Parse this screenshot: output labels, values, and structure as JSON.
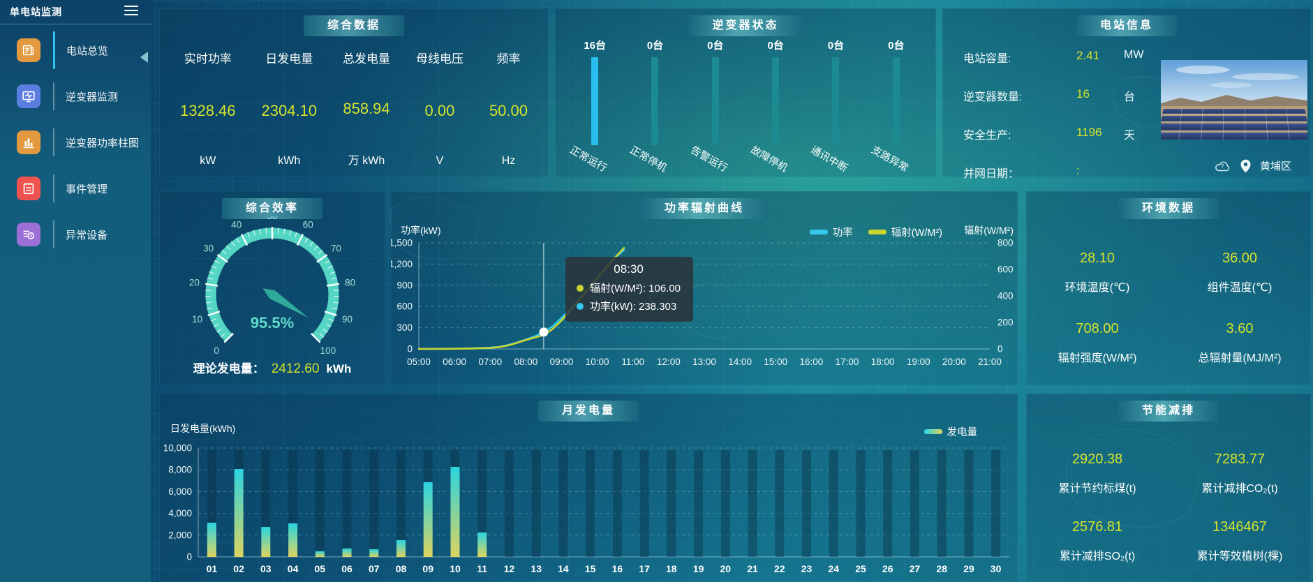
{
  "app": {
    "title": "单电站监测",
    "location": "黄埔区"
  },
  "sidebar": {
    "items": [
      {
        "label": "电站总览",
        "icon": "plant-overview-icon",
        "icon_bg": "#e2993f",
        "active": true
      },
      {
        "label": "逆变器监测",
        "icon": "inverter-monitor-icon",
        "icon_bg": "#5b7de0",
        "active": false
      },
      {
        "label": "逆变器功率柱图",
        "icon": "inverter-power-chart-icon",
        "icon_bg": "#e2993f",
        "active": false
      },
      {
        "label": "事件管理",
        "icon": "event-management-icon",
        "icon_bg": "#ef5350",
        "active": false
      },
      {
        "label": "异常设备",
        "icon": "abnormal-device-icon",
        "icon_bg": "#9c6fd6",
        "active": false
      }
    ]
  },
  "panels": {
    "summary": {
      "title": "综合数据",
      "metrics": [
        {
          "label": "实时功率",
          "value": "1328.46",
          "unit": "kW"
        },
        {
          "label": "日发电量",
          "value": "2304.10",
          "unit": "kWh"
        },
        {
          "label": "总发电量",
          "value": "858.94",
          "unit": "万 kWh"
        },
        {
          "label": "母线电压",
          "value": "0.00",
          "unit": "V"
        },
        {
          "label": "频率",
          "value": "50.00",
          "unit": "Hz"
        }
      ]
    },
    "inverter_status": {
      "title": "逆变器状态"
    },
    "station_info": {
      "title": "电站信息",
      "rows": [
        {
          "label": "电站容量:",
          "value": "2.41",
          "unit": "MW"
        },
        {
          "label": "逆变器数量:",
          "value": "16",
          "unit": "台"
        },
        {
          "label": "安全生产:",
          "value": "1196",
          "unit": "天"
        },
        {
          "label": "并网日期：",
          "value": ":",
          "unit": ""
        }
      ],
      "location": "黄埔区"
    },
    "efficiency": {
      "title": "综合效率",
      "theory_label": "理论发电量：",
      "theory_value": "2412.60",
      "theory_unit": "kWh"
    },
    "power_curve": {
      "title": "功率辐射曲线"
    },
    "environment": {
      "title": "环境数据",
      "items": [
        {
          "value": "28.10",
          "label": "环境温度(℃)"
        },
        {
          "value": "36.00",
          "label": "组件温度(℃)"
        },
        {
          "value": "708.00",
          "label": "辐射强度(W/M²)"
        },
        {
          "value": "3.60",
          "label": "总辐射量(MJ/M²)"
        }
      ]
    },
    "monthly": {
      "title": "月发电量"
    },
    "energy_saving": {
      "title": "节能减排",
      "items": [
        {
          "value": "2920.38",
          "label": "累计节约标煤(t)"
        },
        {
          "value": "7283.77",
          "label": "累计减排CO₂(t)"
        },
        {
          "value": "2576.81",
          "label": "累计减排SO₂(t)"
        },
        {
          "value": "1346467",
          "label": "累计等效植树(棵)"
        }
      ]
    }
  },
  "chart_data": [
    {
      "name": "inverter_status",
      "type": "bar",
      "categories": [
        "正常运行",
        "正常停机",
        "告警运行",
        "故障停机",
        "通讯中断",
        "支路异常"
      ],
      "values": [
        16,
        0,
        0,
        0,
        0,
        0
      ],
      "count_suffix": "台",
      "colors": [
        "#29bdf0",
        "#1b8a91",
        "#1b8a91",
        "#1b8a91",
        "#1b8a91",
        "#1b8a91"
      ]
    },
    {
      "name": "efficiency_gauge",
      "type": "gauge",
      "value": 95.5,
      "display": "95.5%",
      "min": 0,
      "max": 100,
      "tick_step": 10,
      "arc_color": "#55d6c4",
      "needle_color": "#2fa99a",
      "label_color": "#a5ded6",
      "value_color": "#62d9c8"
    },
    {
      "name": "power_radiation_curve",
      "type": "line",
      "title": "功率辐射曲线",
      "left_axis": {
        "label": "功率(kW)",
        "max": 1500,
        "ticks": [
          {
            "v": 1500,
            "t": "1,500"
          },
          {
            "v": 1200,
            "t": "1,200"
          },
          {
            "v": 900,
            "t": "900"
          },
          {
            "v": 600,
            "t": "600"
          },
          {
            "v": 300,
            "t": "300"
          },
          {
            "v": 0,
            "t": "0"
          }
        ]
      },
      "right_axis": {
        "label": "辐射(W/M²)",
        "max": 800,
        "ticks": [
          {
            "v": 800,
            "t": "800"
          },
          {
            "v": 600,
            "t": "600"
          },
          {
            "v": 400,
            "t": "400"
          },
          {
            "v": 200,
            "t": "200"
          },
          {
            "v": 0,
            "t": "0"
          }
        ]
      },
      "x_start_hour": 5,
      "x_end_hour": 21,
      "x_labels": [
        "05:00",
        "06:00",
        "07:00",
        "08:00",
        "09:00",
        "10:00",
        "11:00",
        "12:00",
        "13:00",
        "14:00",
        "15:00",
        "16:00",
        "17:00",
        "18:00",
        "19:00",
        "20:00",
        "21:00"
      ],
      "legend": [
        {
          "label": "功率",
          "color": "#35c8f0"
        },
        {
          "label": "辐射(W/M²)",
          "color": "#c9d62f"
        }
      ],
      "series": [
        {
          "name": "功率",
          "axis": "left",
          "color": "#35c8f0",
          "points": [
            [
              5,
              0
            ],
            [
              5.5,
              1
            ],
            [
              6,
              3
            ],
            [
              6.5,
              8
            ],
            [
              7,
              18
            ],
            [
              7.25,
              30
            ],
            [
              7.5,
              55
            ],
            [
              7.75,
              90
            ],
            [
              8,
              132
            ],
            [
              8.25,
              180
            ],
            [
              8.5,
              238.3
            ],
            [
              8.75,
              320
            ],
            [
              9,
              440
            ],
            [
              9.25,
              565
            ],
            [
              9.5,
              700
            ],
            [
              9.75,
              845
            ],
            [
              10,
              1000
            ],
            [
              10.25,
              1140
            ],
            [
              10.5,
              1290
            ],
            [
              10.75,
              1400
            ]
          ]
        },
        {
          "name": "辐射",
          "axis": "right",
          "color": "#c9d62f",
          "points": [
            [
              5,
              0
            ],
            [
              5.5,
              0
            ],
            [
              6,
              1
            ],
            [
              6.5,
              3
            ],
            [
              7,
              8
            ],
            [
              7.25,
              14
            ],
            [
              7.5,
              26
            ],
            [
              7.75,
              45
            ],
            [
              8,
              68
            ],
            [
              8.25,
              86
            ],
            [
              8.5,
              106
            ],
            [
              8.75,
              150
            ],
            [
              9,
              215
            ],
            [
              9.25,
              290
            ],
            [
              9.5,
              370
            ],
            [
              9.75,
              452
            ],
            [
              10,
              535
            ],
            [
              10.25,
              612
            ],
            [
              10.5,
              690
            ],
            [
              10.75,
              762
            ]
          ]
        }
      ],
      "tooltip": {
        "time": "08:30",
        "hour": 8.5,
        "marker_value": 238.303,
        "rows": [
          {
            "color": "#c9d62f",
            "text": "辐射(W/M²): 106.00"
          },
          {
            "color": "#35c8f0",
            "text": "功率(kW): 238.303"
          }
        ]
      }
    },
    {
      "name": "monthly_generation",
      "type": "bar",
      "y_axis": {
        "label": "日发电量(kWh)",
        "max": 10000,
        "ticks": [
          {
            "v": 10000,
            "t": "10,000"
          },
          {
            "v": 8000,
            "t": "8,000"
          },
          {
            "v": 6000,
            "t": "6,000"
          },
          {
            "v": 4000,
            "t": "4,000"
          },
          {
            "v": 2000,
            "t": "2,000"
          },
          {
            "v": 0,
            "t": "0"
          }
        ]
      },
      "legend": {
        "label": "发电量"
      },
      "categories": [
        "01",
        "02",
        "03",
        "04",
        "05",
        "06",
        "07",
        "08",
        "09",
        "10",
        "11",
        "12",
        "13",
        "14",
        "15",
        "16",
        "17",
        "18",
        "19",
        "20",
        "21",
        "22",
        "23",
        "24",
        "25",
        "26",
        "27",
        "28",
        "29",
        "30"
      ],
      "values": [
        3140,
        8070,
        2750,
        3080,
        510,
        770,
        700,
        1540,
        6860,
        8270,
        2240,
        0,
        0,
        0,
        0,
        0,
        0,
        0,
        0,
        0,
        0,
        0,
        0,
        0,
        0,
        0,
        0,
        0,
        0,
        0
      ],
      "bar_gradient": [
        "#2ad4e0",
        "#ddd45f"
      ]
    }
  ]
}
